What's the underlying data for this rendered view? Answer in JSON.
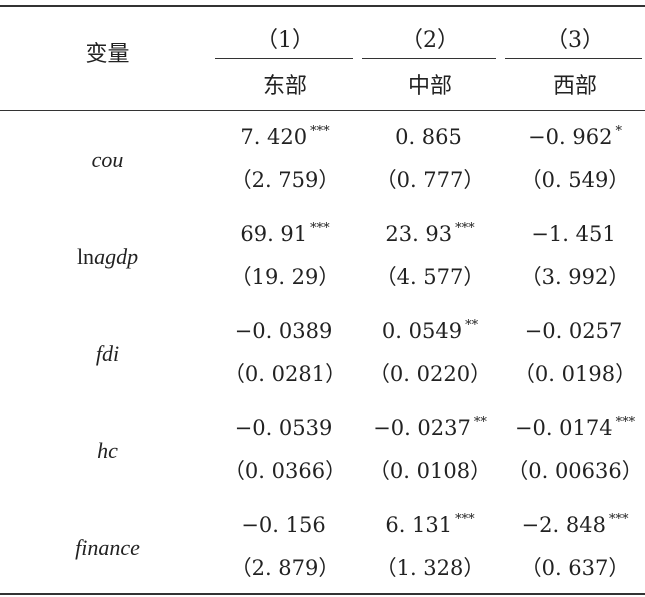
{
  "header": {
    "variable_label": "变量",
    "columns": [
      {
        "num": "（1）",
        "name": "东部"
      },
      {
        "num": "（2）",
        "name": "中部"
      },
      {
        "num": "（3）",
        "name": "西部"
      }
    ]
  },
  "rows": [
    {
      "var_prefix": "",
      "var_italic": "cou",
      "cells": [
        {
          "coef": "7. 420",
          "stars": "***",
          "se": "（2. 759）"
        },
        {
          "coef": "0. 865",
          "stars": "",
          "se": "（0. 777）"
        },
        {
          "coef": "−0. 962",
          "stars": "*",
          "se": "（0. 549）"
        }
      ]
    },
    {
      "var_prefix": "ln",
      "var_italic": "agdp",
      "cells": [
        {
          "coef": "69. 91",
          "stars": "***",
          "se": "（19. 29）"
        },
        {
          "coef": "23. 93",
          "stars": "***",
          "se": "（4. 577）"
        },
        {
          "coef": "−1. 451",
          "stars": "",
          "se": "（3. 992）"
        }
      ]
    },
    {
      "var_prefix": "",
      "var_italic": "fdi",
      "cells": [
        {
          "coef": "−0. 0389",
          "stars": "",
          "se": "（0. 0281）"
        },
        {
          "coef": "0. 0549",
          "stars": "**",
          "se": "（0. 0220）"
        },
        {
          "coef": "−0. 0257",
          "stars": "",
          "se": "（0. 0198）"
        }
      ]
    },
    {
      "var_prefix": "",
      "var_italic": "hc",
      "cells": [
        {
          "coef": "−0. 0539",
          "stars": "",
          "se": "（0. 0366）"
        },
        {
          "coef": "−0. 0237",
          "stars": "**",
          "se": "（0. 0108）"
        },
        {
          "coef": "−0. 0174",
          "stars": "***",
          "se": "（0. 00636）"
        }
      ]
    },
    {
      "var_prefix": "",
      "var_italic": "finance",
      "cells": [
        {
          "coef": "−0. 156",
          "stars": "",
          "se": "（2. 879）"
        },
        {
          "coef": "6. 131",
          "stars": "***",
          "se": "（1. 328）"
        },
        {
          "coef": "−2. 848",
          "stars": "***",
          "se": "（0. 637）"
        }
      ]
    }
  ]
}
